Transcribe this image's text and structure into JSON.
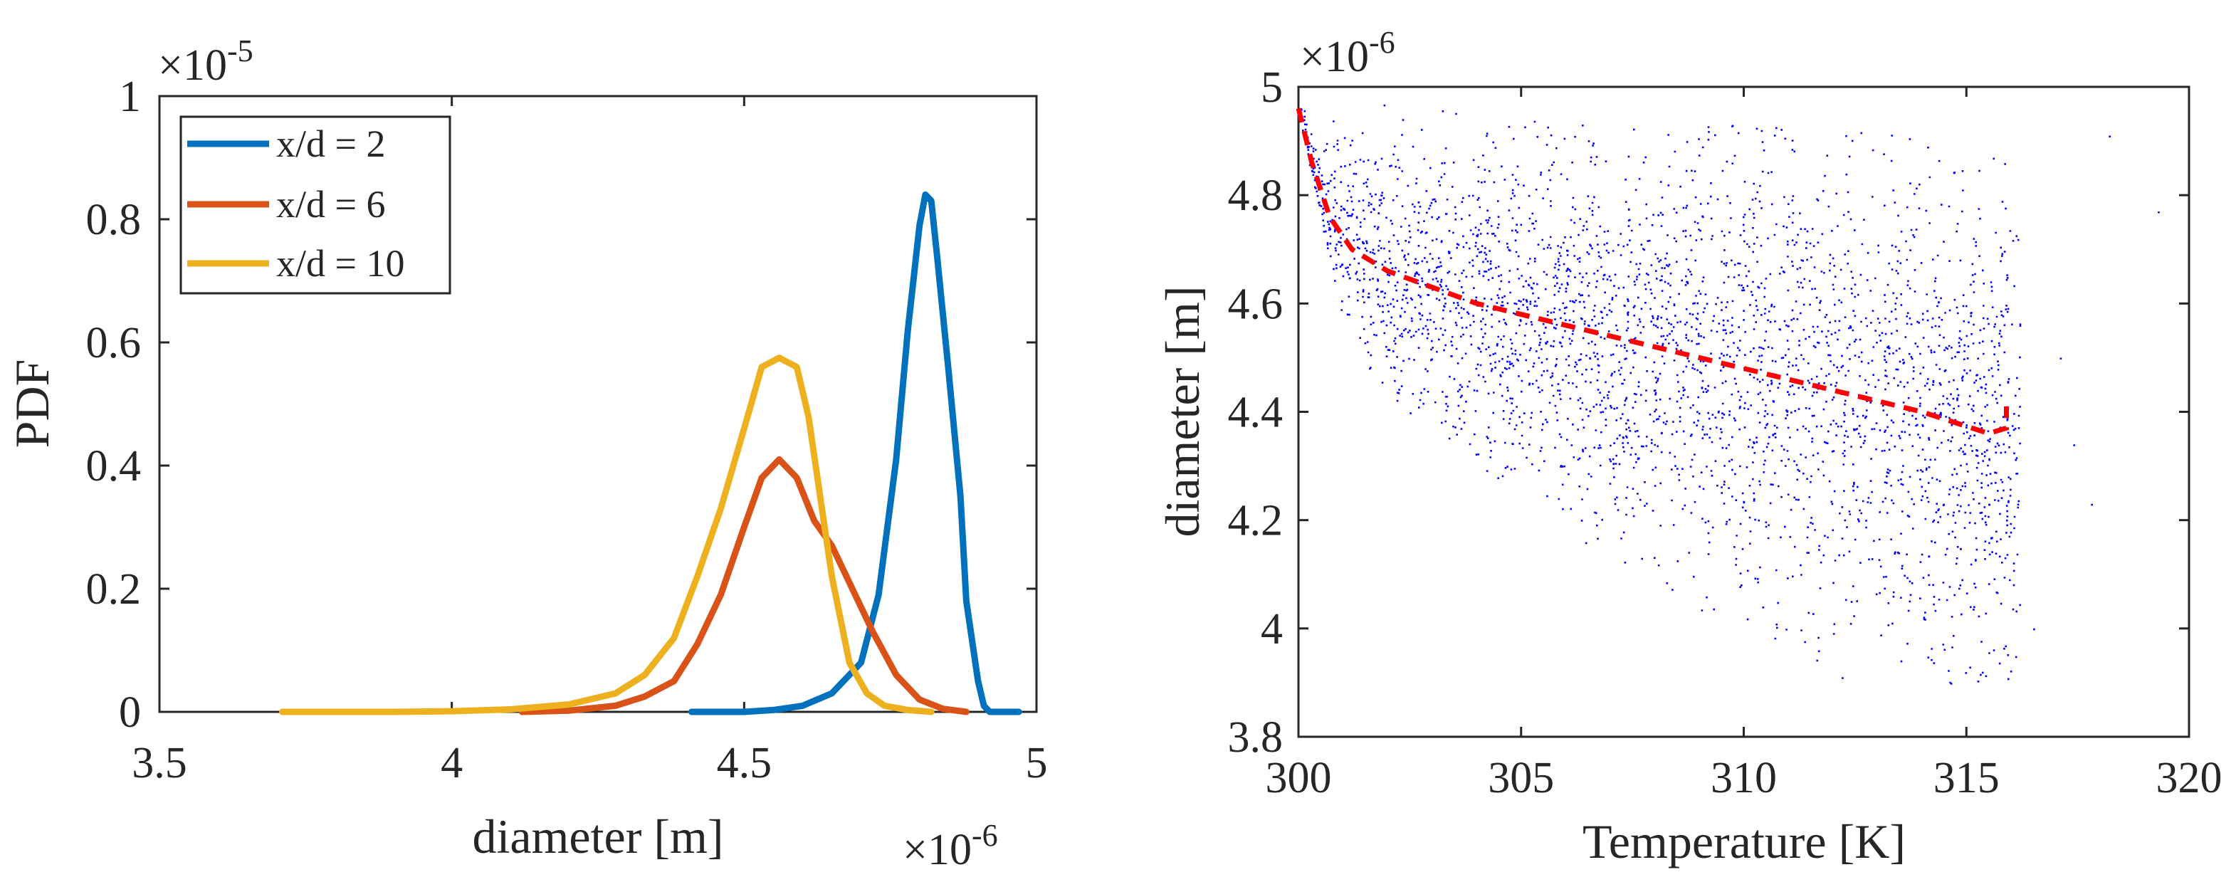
{
  "chart_data": [
    {
      "type": "line",
      "title": "",
      "xlabel": "diameter [m]",
      "ylabel": "PDF",
      "x_multiplier_label": "×10",
      "x_multiplier_exp": "-6",
      "y_multiplier_label": "×10",
      "y_multiplier_exp": "-5",
      "xlim": [
        3.5,
        5
      ],
      "ylim": [
        0,
        1
      ],
      "xticks": [
        "3.5",
        "4",
        "4.5",
        "5"
      ],
      "yticks": [
        "0",
        "0.2",
        "0.4",
        "0.6",
        "0.8",
        "1"
      ],
      "legend_position": "top-left",
      "grid": false,
      "series": [
        {
          "name": "x/d = 2",
          "color": "#0072BD",
          "x": [
            4.41,
            4.5,
            4.55,
            4.6,
            4.65,
            4.7,
            4.73,
            4.76,
            4.78,
            4.8,
            4.81,
            4.82,
            4.83,
            4.85,
            4.87,
            4.88,
            4.9,
            4.91,
            4.92,
            4.95,
            4.97
          ],
          "y": [
            0,
            0,
            0.003,
            0.01,
            0.03,
            0.08,
            0.19,
            0.41,
            0.62,
            0.79,
            0.84,
            0.83,
            0.74,
            0.55,
            0.35,
            0.18,
            0.05,
            0.01,
            0,
            0,
            0
          ]
        },
        {
          "name": "x/d = 6",
          "color": "#D95319",
          "x": [
            4.12,
            4.2,
            4.28,
            4.33,
            4.38,
            4.42,
            4.46,
            4.5,
            4.53,
            4.56,
            4.59,
            4.62,
            4.65,
            4.68,
            4.72,
            4.76,
            4.8,
            4.84,
            4.88
          ],
          "y": [
            0,
            0.002,
            0.01,
            0.025,
            0.05,
            0.11,
            0.19,
            0.3,
            0.38,
            0.41,
            0.38,
            0.31,
            0.27,
            0.21,
            0.13,
            0.06,
            0.02,
            0.005,
            0
          ]
        },
        {
          "name": "x/d = 10",
          "color": "#EDB120",
          "x": [
            3.71,
            3.9,
            4.0,
            4.1,
            4.2,
            4.28,
            4.33,
            4.38,
            4.42,
            4.46,
            4.5,
            4.53,
            4.56,
            4.59,
            4.61,
            4.63,
            4.65,
            4.68,
            4.71,
            4.74,
            4.78,
            4.82
          ],
          "y": [
            0,
            0,
            0.001,
            0.004,
            0.012,
            0.03,
            0.06,
            0.12,
            0.22,
            0.33,
            0.46,
            0.56,
            0.575,
            0.56,
            0.48,
            0.35,
            0.22,
            0.08,
            0.03,
            0.01,
            0.003,
            0
          ]
        }
      ]
    },
    {
      "type": "scatter",
      "title": "",
      "xlabel": "Temperature [K]",
      "ylabel": "diameter [m]",
      "y_multiplier_label": "×10",
      "y_multiplier_exp": "-6",
      "xlim": [
        300,
        320
      ],
      "ylim": [
        3.8,
        5
      ],
      "xticks": [
        "300",
        "305",
        "310",
        "315",
        "320"
      ],
      "yticks": [
        "3.8",
        "4",
        "4.2",
        "4.4",
        "4.6",
        "4.8",
        "5"
      ],
      "grid": false,
      "scatter_color": "#0000FF",
      "scatter_description": "dense cloud of points; diameter decreases with temperature, spread widens with temperature; most points between 300 K and 316 K",
      "scatter_envelope": {
        "x": [
          300.0,
          300.5,
          301,
          302,
          304,
          306,
          308,
          310,
          312,
          314,
          316
        ],
        "upper": [
          5.0,
          4.99,
          4.98,
          4.97,
          4.96,
          4.94,
          4.93,
          4.93,
          4.92,
          4.91,
          4.9
        ],
        "lower": [
          4.95,
          4.75,
          4.55,
          4.42,
          4.3,
          4.18,
          4.08,
          3.98,
          3.93,
          3.9,
          3.87
        ]
      },
      "outliers": [
        {
          "x": 318.2,
          "y": 4.91
        },
        {
          "x": 319.3,
          "y": 4.77
        },
        {
          "x": 317.8,
          "y": 4.23
        },
        {
          "x": 317.1,
          "y": 4.5
        },
        {
          "x": 316.5,
          "y": 4.0
        },
        {
          "x": 317.4,
          "y": 4.34
        },
        {
          "x": 312.2,
          "y": 3.91
        }
      ],
      "trend_line": {
        "color": "#FF0000",
        "style": "dashed",
        "x": [
          300,
          300.3,
          300.7,
          301.2,
          302,
          303,
          304,
          306,
          308,
          310,
          312,
          314,
          315.5,
          315.9,
          315.9
        ],
        "y": [
          4.96,
          4.86,
          4.76,
          4.7,
          4.66,
          4.63,
          4.6,
          4.56,
          4.52,
          4.48,
          4.44,
          4.4,
          4.36,
          4.37,
          4.41
        ]
      }
    }
  ]
}
